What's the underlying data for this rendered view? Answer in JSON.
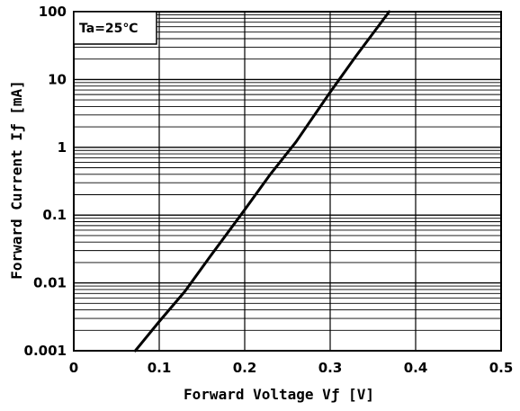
{
  "chart_data": {
    "type": "line",
    "title": "",
    "annotation": "Ta=25℃",
    "xlabel": "Forward Voltage Vƒ [V]",
    "ylabel": "Forward Current Iƒ [mA]",
    "xlim": [
      0,
      0.5
    ],
    "ylim": [
      0.001,
      100
    ],
    "y_scale": "log",
    "grid": true,
    "x_ticks": [
      "0",
      "0.1",
      "0.2",
      "0.3",
      "0.4",
      "0.5"
    ],
    "y_ticks": [
      "0.001",
      "0.01",
      "0.1",
      "1",
      "10",
      "100"
    ],
    "series": [
      {
        "x": [
          0.072,
          0.1,
          0.13,
          0.16,
          0.2,
          0.23,
          0.26,
          0.3,
          0.33,
          0.369
        ],
        "y": [
          0.001,
          0.0027,
          0.0075,
          0.025,
          0.12,
          0.4,
          1.2,
          6.5,
          22,
          100
        ]
      }
    ]
  }
}
